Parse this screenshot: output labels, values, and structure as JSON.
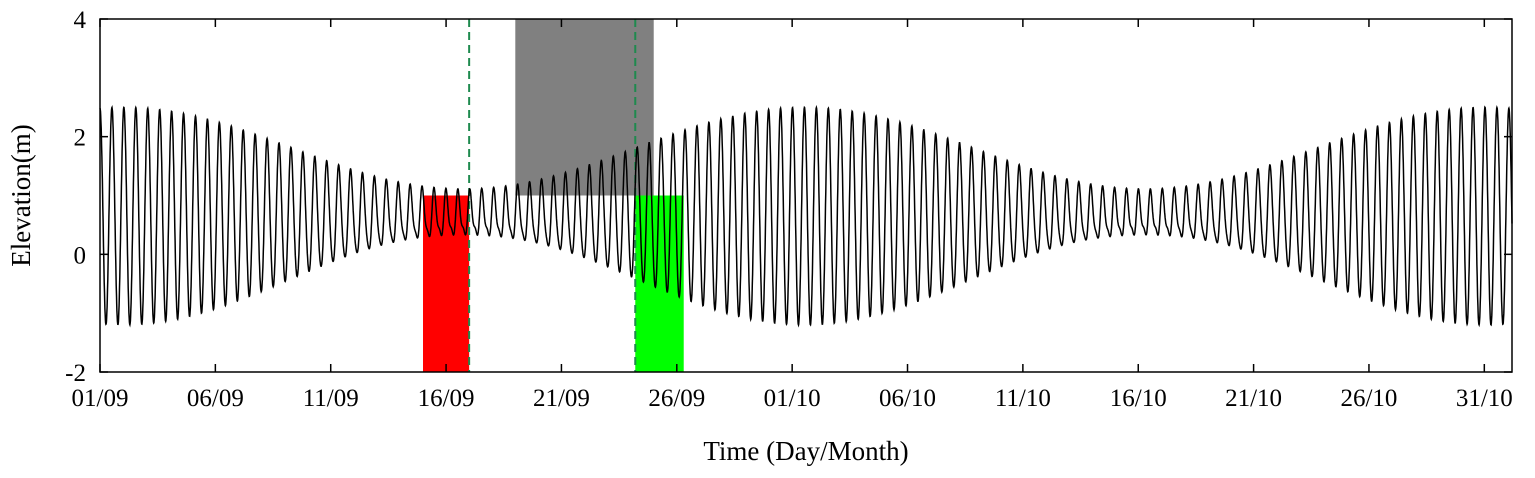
{
  "chart_data": {
    "type": "line",
    "title": "",
    "xlabel": "Time (Day/Month)",
    "ylabel": "Elevation(m)",
    "x_range_days": [
      0,
      61.2
    ],
    "ylim": [
      -2,
      4
    ],
    "x_ticks": [
      {
        "day": 0,
        "label": "01/09"
      },
      {
        "day": 5,
        "label": "06/09"
      },
      {
        "day": 10,
        "label": "11/09"
      },
      {
        "day": 15,
        "label": "16/09"
      },
      {
        "day": 20,
        "label": "21/09"
      },
      {
        "day": 25,
        "label": "26/09"
      },
      {
        "day": 30,
        "label": "01/10"
      },
      {
        "day": 35,
        "label": "06/10"
      },
      {
        "day": 40,
        "label": "11/10"
      },
      {
        "day": 45,
        "label": "16/10"
      },
      {
        "day": 50,
        "label": "21/10"
      },
      {
        "day": 55,
        "label": "26/10"
      },
      {
        "day": 60,
        "label": "31/10"
      }
    ],
    "y_ticks": [
      -2,
      0,
      2,
      4
    ],
    "grid": false,
    "legend": "none",
    "series": [
      {
        "tidal_model": {
          "semidiurnal_period_days": 0.5175,
          "spring_neap_period_days": 29.53,
          "mean_level_m": 0.65,
          "amplitude_max_m": 1.85,
          "amplitude_min_m": 0.35,
          "first_spring_peak_day": 1.0,
          "secondary_high_m": 0.15
        },
        "color": "#000000"
      }
    ],
    "shaded_regions": [
      {
        "x_start_day": 14.0,
        "x_end_day": 16.0,
        "y_start": -2,
        "y_end": 1,
        "color": "#ff0000"
      },
      {
        "x_start_day": 18.0,
        "x_end_day": 24.0,
        "y_start": 1,
        "y_end": 4,
        "color": "#808080"
      },
      {
        "x_start_day": 23.2,
        "x_end_day": 25.3,
        "y_start": -2,
        "y_end": 1,
        "color": "#00ff00"
      }
    ],
    "vertical_lines": [
      {
        "x_day": 16.0,
        "style": "dashed",
        "color": "#1e8a4e"
      },
      {
        "x_day": 23.2,
        "style": "dashed",
        "color": "#1e8a4e"
      }
    ]
  }
}
